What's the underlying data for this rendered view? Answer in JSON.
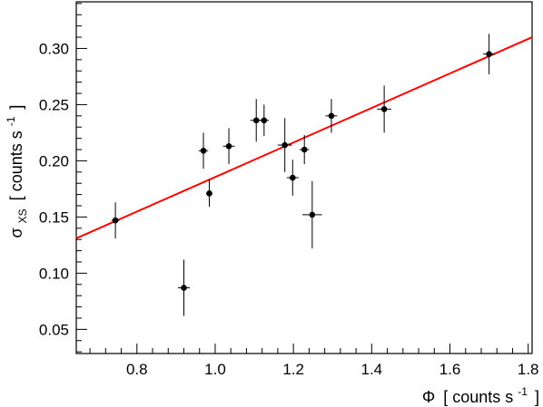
{
  "chart_data": {
    "type": "scatter",
    "x_axis": {
      "label_symbol": "Φ",
      "label_text": "[ counts s",
      "label_sup": "-1",
      "label_end": "]",
      "lim": [
        0.645,
        1.81
      ],
      "ticks": [
        0.8,
        1.0,
        1.2,
        1.4,
        1.6,
        1.8
      ],
      "tick_labels": [
        "0.8",
        "1.0",
        "1.2",
        "1.4",
        "1.6",
        "1.8"
      ]
    },
    "y_axis": {
      "label_symbol": "σ",
      "label_sub": "XS",
      "label_text": "[ counts s",
      "label_sup": "-1",
      "label_end": "]",
      "lim": [
        0.0285,
        0.3415
      ],
      "ticks": [
        0.05,
        0.1,
        0.15,
        0.2,
        0.25,
        0.3
      ],
      "tick_labels": [
        "0.05",
        "0.10",
        "0.15",
        "0.20",
        "0.25",
        "0.30"
      ]
    },
    "points": [
      {
        "x": 0.745,
        "y": 0.147,
        "xerr": 0.01,
        "yerr": 0.016
      },
      {
        "x": 0.92,
        "y": 0.087,
        "xerr": 0.015,
        "yerr": 0.025
      },
      {
        "x": 0.97,
        "y": 0.209,
        "xerr": 0.012,
        "yerr": 0.016
      },
      {
        "x": 0.985,
        "y": 0.171,
        "xerr": 0.008,
        "yerr": 0.012
      },
      {
        "x": 1.035,
        "y": 0.213,
        "xerr": 0.015,
        "yerr": 0.016
      },
      {
        "x": 1.105,
        "y": 0.236,
        "xerr": 0.015,
        "yerr": 0.019
      },
      {
        "x": 1.125,
        "y": 0.236,
        "xerr": 0.012,
        "yerr": 0.014
      },
      {
        "x": 1.178,
        "y": 0.214,
        "xerr": 0.018,
        "yerr": 0.024
      },
      {
        "x": 1.198,
        "y": 0.185,
        "xerr": 0.015,
        "yerr": 0.016
      },
      {
        "x": 1.228,
        "y": 0.21,
        "xerr": 0.012,
        "yerr": 0.013
      },
      {
        "x": 1.248,
        "y": 0.152,
        "xerr": 0.025,
        "yerr": 0.03
      },
      {
        "x": 1.297,
        "y": 0.24,
        "xerr": 0.015,
        "yerr": 0.015
      },
      {
        "x": 1.432,
        "y": 0.246,
        "xerr": 0.018,
        "yerr": 0.021
      },
      {
        "x": 1.7,
        "y": 0.295,
        "xerr": 0.015,
        "yerr": 0.018
      }
    ],
    "fit_line": {
      "color": "#ff0000",
      "x": [
        0.645,
        1.81
      ],
      "y": [
        0.131,
        0.31
      ]
    },
    "marker_color": "#000000",
    "grid": false
  }
}
